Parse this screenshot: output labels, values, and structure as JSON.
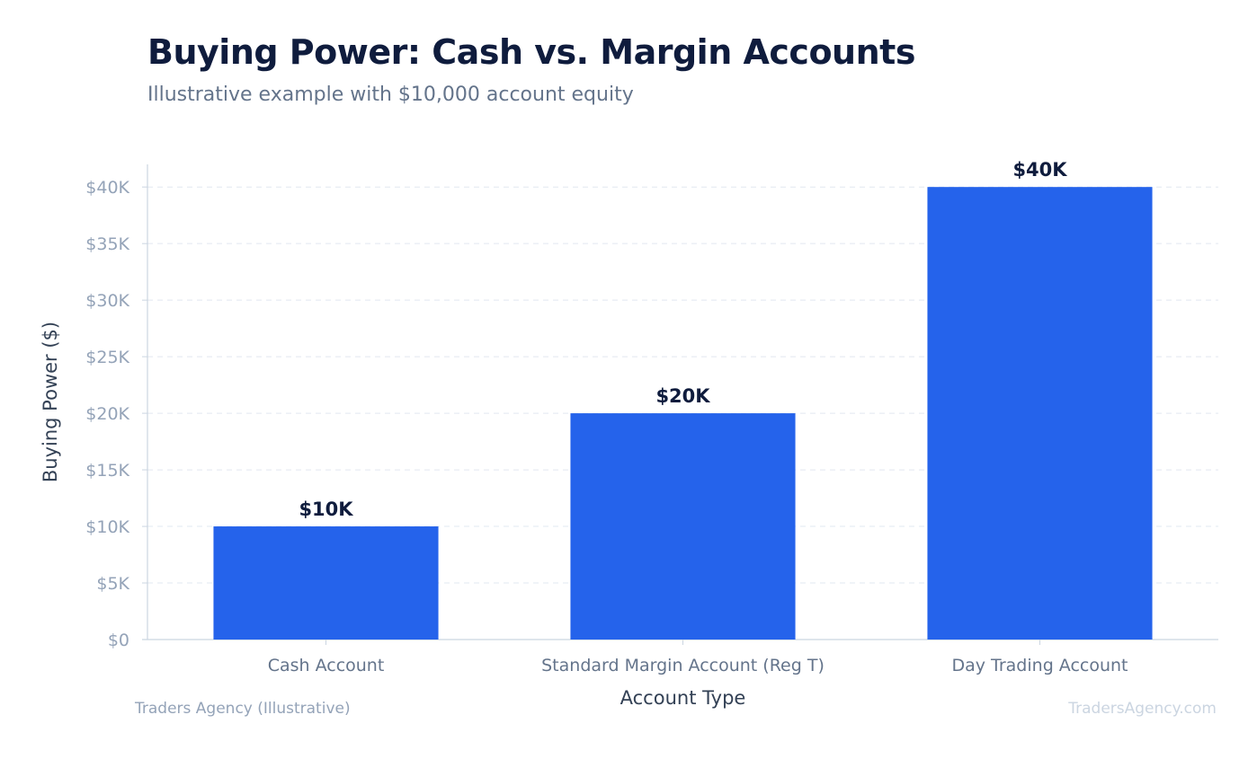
{
  "title": "Buying Power: Cash vs. Margin Accounts",
  "subtitle": "Illustrative example with $10,000 account equity",
  "footer": {
    "source": "Traders Agency (Illustrative)",
    "watermark": "TradersAgency.com"
  },
  "colors": {
    "bar": "#2563eb",
    "title": "#0f1c3d",
    "grid": "#e2e8f0",
    "axis": "#cbd5e1"
  },
  "chart_data": {
    "type": "bar",
    "categories": [
      "Cash Account",
      "Standard Margin Account (Reg T)",
      "Day Trading Account"
    ],
    "values": [
      10000,
      20000,
      40000
    ],
    "data_labels": [
      "$10K",
      "$20K",
      "$40K"
    ],
    "xlabel": "Account Type",
    "ylabel": "Buying Power ($)",
    "ylim": [
      0,
      42000
    ],
    "yticks": [
      0,
      5000,
      10000,
      15000,
      20000,
      25000,
      30000,
      35000,
      40000
    ],
    "ytick_labels": [
      "$0",
      "$5K",
      "$10K",
      "$15K",
      "$20K",
      "$25K",
      "$30K",
      "$35K",
      "$40K"
    ],
    "grid": true,
    "legend": "none"
  }
}
